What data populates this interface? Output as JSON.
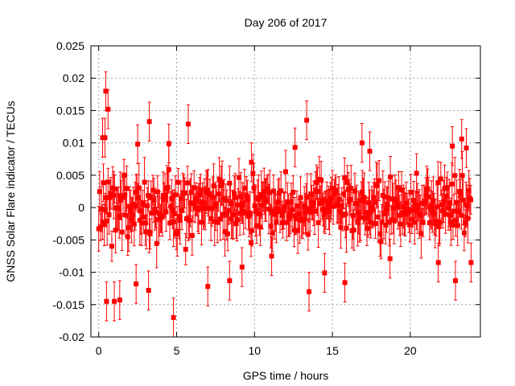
{
  "chart_data": {
    "type": "scatter",
    "title": "Day 206 of 2017",
    "xlabel": "GPS time / hours",
    "ylabel": "GNSS Solar Flare indicator / TECUs",
    "xlim": [
      -0.5,
      24.5
    ],
    "ylim": [
      -0.02,
      0.025
    ],
    "x_ticks": [
      0,
      5,
      10,
      15,
      20
    ],
    "x_tick_labels": [
      "0",
      "5",
      "10",
      "15",
      "20"
    ],
    "y_ticks": [
      -0.02,
      -0.015,
      -0.01,
      -0.005,
      0,
      0.005,
      0.01,
      0.015,
      0.02,
      0.025
    ],
    "y_tick_labels": [
      "-0.02",
      "-0.015",
      "-0.01",
      "-0.005",
      "0",
      "0.005",
      "0.01",
      "0.015",
      "0.02",
      "0.025"
    ],
    "grid": true,
    "marker_color": "#ff0000",
    "series": [
      {
        "name": "indicator",
        "error_bar_typical": 0.003,
        "points": [
          {
            "x": 0.45,
            "y": 0.018
          },
          {
            "x": 0.6,
            "y": 0.0152
          },
          {
            "x": 0.25,
            "y": 0.0108
          },
          {
            "x": 0.4,
            "y": 0.0108
          },
          {
            "x": 3.25,
            "y": 0.0133
          },
          {
            "x": 5.75,
            "y": 0.0129
          },
          {
            "x": 13.35,
            "y": 0.0135
          },
          {
            "x": 23.3,
            "y": 0.0106
          },
          {
            "x": 0.5,
            "y": -0.0145
          },
          {
            "x": 1.0,
            "y": -0.0145
          },
          {
            "x": 1.35,
            "y": -0.0143
          },
          {
            "x": 3.2,
            "y": -0.0128
          },
          {
            "x": 4.8,
            "y": -0.017
          },
          {
            "x": 13.5,
            "y": -0.013
          },
          {
            "x": 15.8,
            "y": -0.0116
          },
          {
            "x": 22.9,
            "y": -0.0113
          },
          {
            "x": 2.4,
            "y": -0.0118
          },
          {
            "x": 7.0,
            "y": -0.0122
          },
          {
            "x": 8.4,
            "y": -0.0113
          },
          {
            "x": 9.2,
            "y": -0.0092
          },
          {
            "x": 11.1,
            "y": -0.0075
          },
          {
            "x": 14.5,
            "y": -0.0101
          },
          {
            "x": 18.7,
            "y": -0.0079
          },
          {
            "x": 21.8,
            "y": -0.0085
          },
          {
            "x": 23.9,
            "y": -0.0085
          },
          {
            "x": 2.5,
            "y": 0.0098
          },
          {
            "x": 4.5,
            "y": 0.0099
          },
          {
            "x": 9.8,
            "y": 0.007
          },
          {
            "x": 12.6,
            "y": 0.0093
          },
          {
            "x": 16.9,
            "y": 0.01
          },
          {
            "x": 17.4,
            "y": 0.0087
          },
          {
            "x": 20.4,
            "y": 0.0053
          },
          {
            "x": 22.7,
            "y": 0.0095
          },
          {
            "x": 23.6,
            "y": 0.0092
          }
        ]
      }
    ]
  }
}
